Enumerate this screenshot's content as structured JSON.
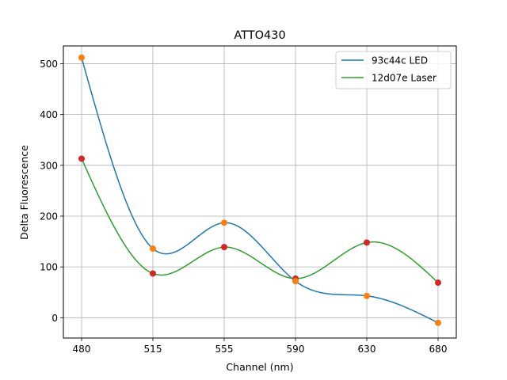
{
  "chart_data": {
    "type": "line",
    "title": "ATTO430",
    "xlabel": "Channel (nm)",
    "ylabel": "Delta Fluorescence",
    "categories": [
      "480",
      "515",
      "555",
      "590",
      "630",
      "680"
    ],
    "ylim": [
      -40,
      535
    ],
    "yticks": [
      0,
      100,
      200,
      300,
      400,
      500
    ],
    "grid": true,
    "legend_position": "top-right",
    "series": [
      {
        "name": "93c44c LED",
        "values": [
          512,
          136,
          187,
          72,
          43,
          -10
        ],
        "line_color": "#1f77b4",
        "marker_color": "#ff7f0e"
      },
      {
        "name": "12d07e Laser",
        "values": [
          313,
          87,
          139,
          77,
          148,
          69
        ],
        "line_color": "#2ca02c",
        "marker_color": "#d62728"
      }
    ]
  }
}
